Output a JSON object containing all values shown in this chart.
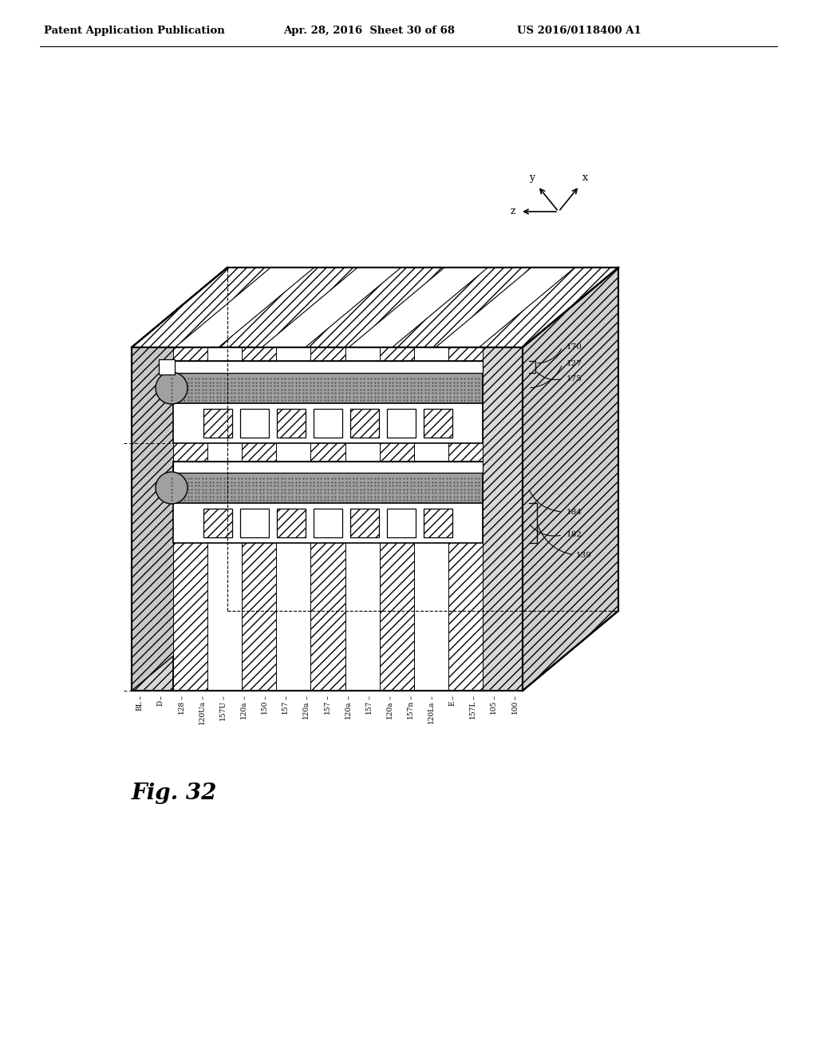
{
  "bg_color": "#ffffff",
  "header_left": "Patent Application Publication",
  "header_mid": "Apr. 28, 2016  Sheet 30 of 68",
  "header_right": "US 2016/0118400 A1",
  "fig_label": "Fig. 32",
  "bottom_labels": [
    "BL",
    "D",
    "128",
    "120Ua",
    "157U",
    "120a",
    "150",
    "157",
    "120a",
    "157",
    "120a",
    "157",
    "120a",
    "157n",
    "120La",
    "E",
    "157L",
    "105",
    "100"
  ],
  "right_labels": [
    "170",
    "175",
    "127",
    "182",
    "184",
    "139"
  ],
  "axis_x": "x",
  "axis_y": "y",
  "axis_z": "z"
}
